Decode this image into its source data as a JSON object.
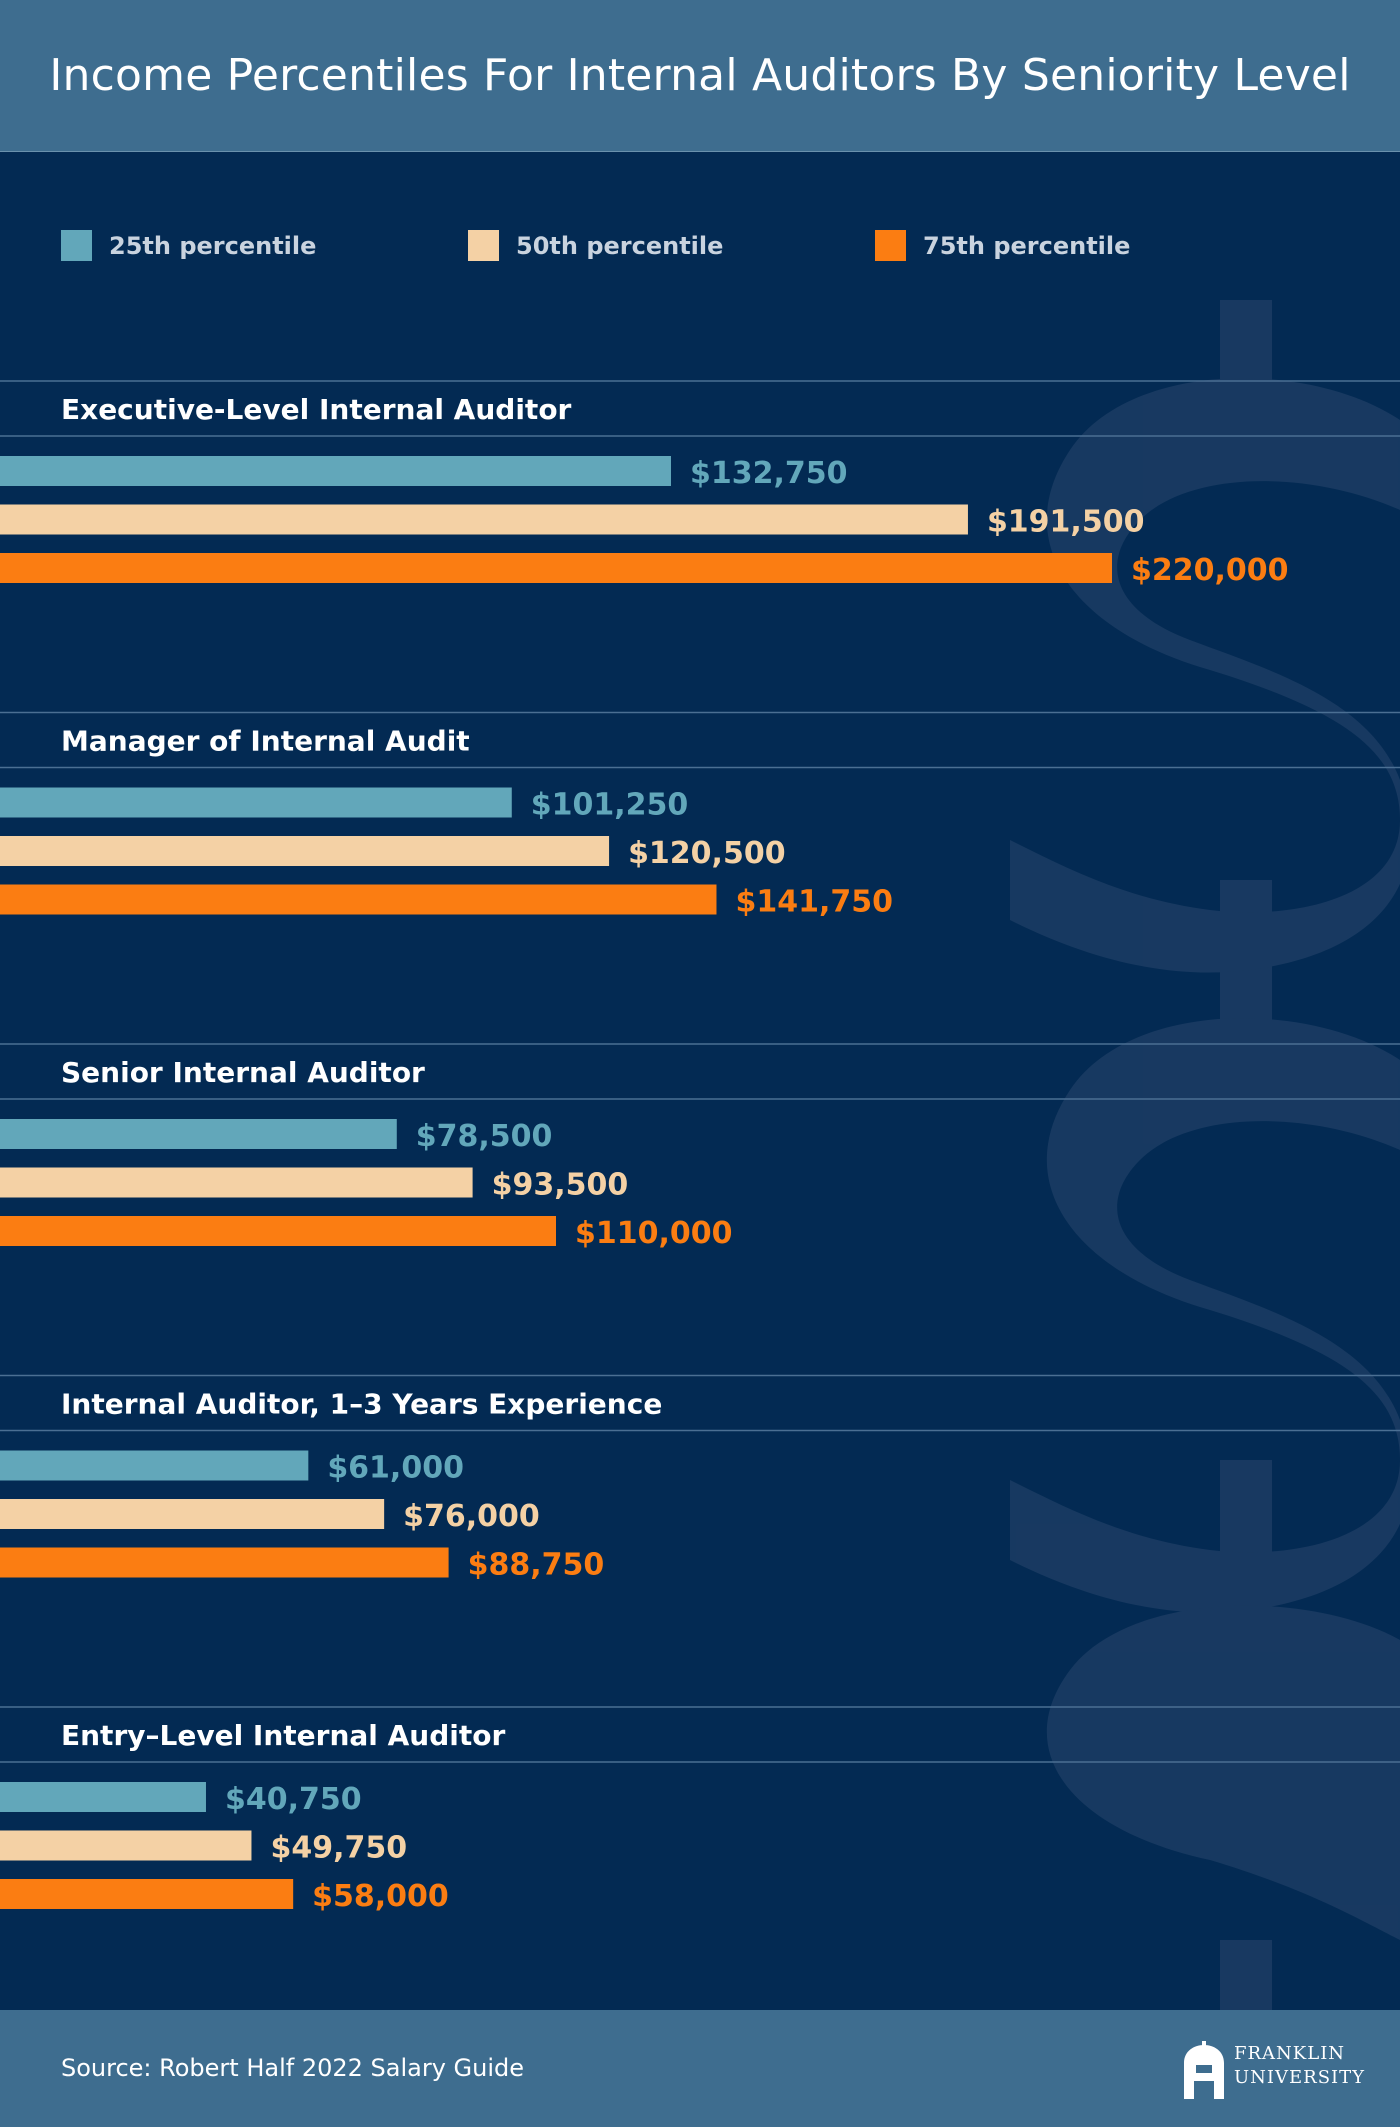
{
  "title": "Income Percentiles For Internal Auditors By Seniority Level",
  "legend": [
    {
      "label": "25th percentile",
      "color": "#62a7ba"
    },
    {
      "label": "50th percentile",
      "color": "#f4d1a5"
    },
    {
      "label": "75th percentile",
      "color": "#fb7d12"
    }
  ],
  "chart_data": {
    "type": "bar",
    "orientation": "horizontal",
    "grid": false,
    "legend_position": "top",
    "series_names": [
      "25th percentile",
      "50th percentile",
      "75th percentile"
    ],
    "groups": [
      {
        "label": "Executive-Level Internal Auditor",
        "values": [
          132750,
          191500,
          220000
        ],
        "labels": [
          "$132,750",
          "$191,500",
          "$220,000"
        ]
      },
      {
        "label": "Manager of Internal Audit",
        "values": [
          101250,
          120500,
          141750
        ],
        "labels": [
          "$101,250",
          "$120,500",
          "$141,750"
        ]
      },
      {
        "label": "Senior Internal Auditor",
        "values": [
          78500,
          93500,
          110000
        ],
        "labels": [
          "$78,500",
          "$93,500",
          "$110,000"
        ]
      },
      {
        "label": "Internal Auditor, 1–3 Years Experience",
        "values": [
          61000,
          76000,
          88750
        ],
        "labels": [
          "$61,000",
          "$76,000",
          "$88,750"
        ]
      },
      {
        "label": "Entry–Level Internal Auditor",
        "values": [
          40750,
          49750,
          58000
        ],
        "labels": [
          "$40,750",
          "$49,750",
          "$58,000"
        ]
      }
    ]
  },
  "background_icon": "dollar-sign-icon",
  "footer": {
    "source": "Source: Robert Half 2022 Salary Guide",
    "logo_line1": "FRANKLIN",
    "logo_line2": "UNIVERSITY"
  }
}
